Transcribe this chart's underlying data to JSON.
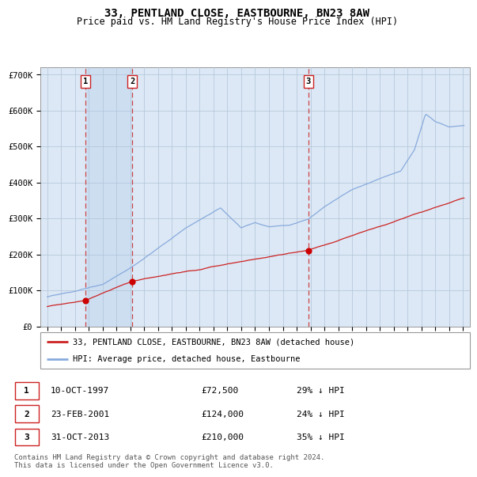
{
  "title": "33, PENTLAND CLOSE, EASTBOURNE, BN23 8AW",
  "subtitle": "Price paid vs. HM Land Registry's House Price Index (HPI)",
  "footer": "Contains HM Land Registry data © Crown copyright and database right 2024.\nThis data is licensed under the Open Government Licence v3.0.",
  "legend_line1": "33, PENTLAND CLOSE, EASTBOURNE, BN23 8AW (detached house)",
  "legend_line2": "HPI: Average price, detached house, Eastbourne",
  "transactions": [
    {
      "num": 1,
      "date": "10-OCT-1997",
      "price": 72500,
      "pct": "29%",
      "dir": "↓",
      "x_year": 1997.78
    },
    {
      "num": 2,
      "date": "23-FEB-2001",
      "price": 124000,
      "pct": "24%",
      "dir": "↓",
      "x_year": 2001.14
    },
    {
      "num": 3,
      "date": "31-OCT-2013",
      "price": 210000,
      "pct": "35%",
      "dir": "↓",
      "x_year": 2013.83
    }
  ],
  "xlim": [
    1994.5,
    2025.5
  ],
  "ylim": [
    0,
    720000
  ],
  "yticks": [
    0,
    100000,
    200000,
    300000,
    400000,
    500000,
    600000,
    700000
  ],
  "ytick_labels": [
    "£0",
    "£100K",
    "£200K",
    "£300K",
    "£400K",
    "£500K",
    "£600K",
    "£700K"
  ],
  "hpi_color": "#88aadd",
  "price_color": "#cc2222",
  "dashed_color": "#cc4444",
  "marker_color": "#cc0000",
  "bg_color": "#dce8f5",
  "grid_color": "#b0c4d8",
  "highlight_color": "#c8daf0",
  "title_fontsize": 10,
  "subtitle_fontsize": 8.5,
  "axis_fontsize": 7.5,
  "legend_fontsize": 7.5,
  "footer_fontsize": 6.5
}
